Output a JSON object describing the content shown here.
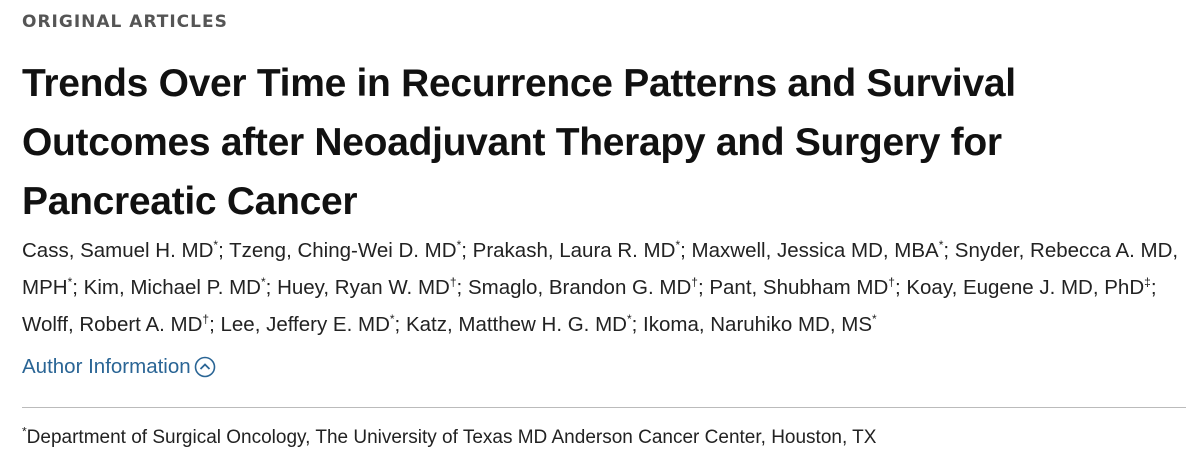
{
  "header": {
    "section": "ORIGINAL ARTICLES",
    "title": "Trends Over Time in Recurrence Patterns and Survival Outcomes after Neoadjuvant Therapy and Surgery for Pancreatic Cancer"
  },
  "authors": {
    "separator": "; ",
    "list": [
      {
        "name": "Cass, Samuel H. MD",
        "mark": "*"
      },
      {
        "name": "Tzeng, Ching-Wei D. MD",
        "mark": "*"
      },
      {
        "name": "Prakash, Laura R. MD",
        "mark": "*"
      },
      {
        "name": "Maxwell, Jessica MD, MBA",
        "mark": "*"
      },
      {
        "name": "Snyder, Rebecca A. MD, MPH",
        "mark": "*"
      },
      {
        "name": "Kim, Michael P. MD",
        "mark": "*"
      },
      {
        "name": "Huey, Ryan W. MD",
        "mark": "†"
      },
      {
        "name": "Smaglo, Brandon G. MD",
        "mark": "†"
      },
      {
        "name": "Pant, Shubham MD",
        "mark": "†"
      },
      {
        "name": "Koay, Eugene J. MD, PhD",
        "mark": "‡"
      },
      {
        "name": "Wolff, Robert A. MD",
        "mark": "†"
      },
      {
        "name": "Lee, Jeffery E. MD",
        "mark": "*"
      },
      {
        "name": "Katz, Matthew H. G. MD",
        "mark": "*"
      },
      {
        "name": "Ikoma, Naruhiko MD, MS",
        "mark": "*"
      }
    ]
  },
  "author_information": {
    "link": "Author Information",
    "affiliations": [
      {
        "mark": "*",
        "text": "Department of Surgical Oncology, The University of Texas MD Anderson Cancer Center, Houston, TX"
      }
    ]
  }
}
